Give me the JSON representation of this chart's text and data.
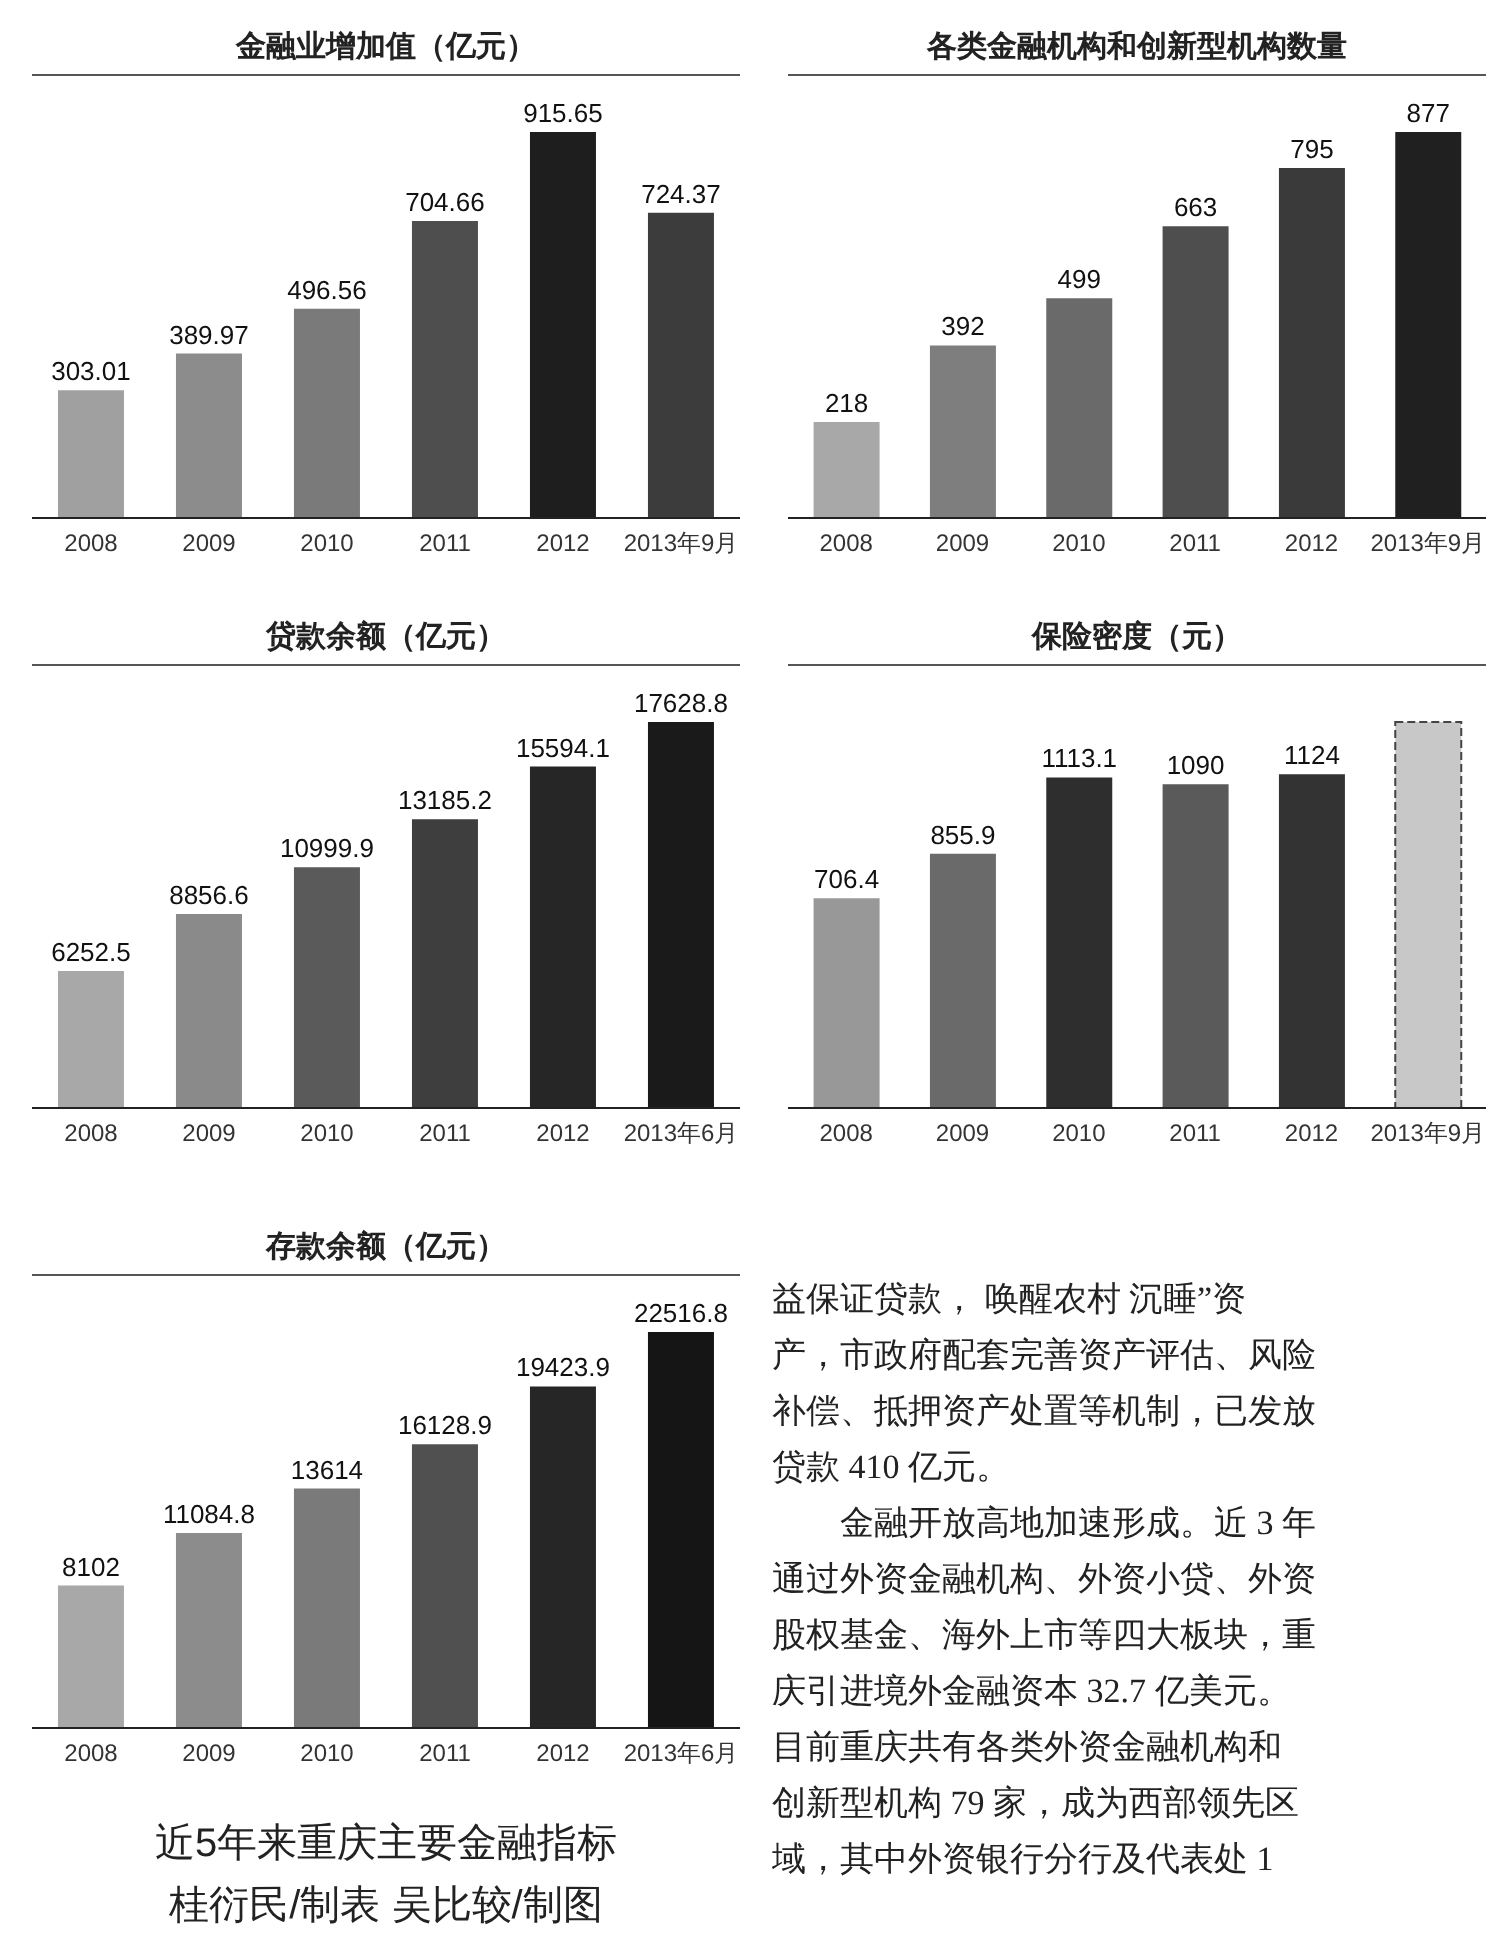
{
  "chart_data": [
    {
      "type": "bar",
      "title": "金融业增加值（亿元）",
      "categories": [
        "2008",
        "2009",
        "2010",
        "2011",
        "2012",
        "2013年9月"
      ],
      "values": [
        303.01,
        389.97,
        496.56,
        704.66,
        915.65,
        724.37
      ],
      "colors": [
        "#a0a0a0",
        "#8c8c8c",
        "#7a7a7a",
        "#4e4e4e",
        "#1e1e1e",
        "#3c3c3c"
      ],
      "data_labels": true
    },
    {
      "type": "bar",
      "title": "各类金融机构和创新型机构数量",
      "categories": [
        "2008",
        "2009",
        "2010",
        "2011",
        "2012",
        "2013年9月"
      ],
      "values": [
        218,
        392,
        499,
        663,
        795,
        877
      ],
      "colors": [
        "#a8a8a8",
        "#7e7e7e",
        "#6a6a6a",
        "#4e4e4e",
        "#3a3a3a",
        "#202020"
      ],
      "data_labels": true
    },
    {
      "type": "bar",
      "title": "贷款余额（亿元）",
      "categories": [
        "2008",
        "2009",
        "2010",
        "2011",
        "2012",
        "2013年6月"
      ],
      "values": [
        6252.5,
        8856.6,
        10999.9,
        13185.2,
        15594.1,
        17628.8
      ],
      "colors": [
        "#a8a8a8",
        "#8a8a8a",
        "#5a5a5a",
        "#3e3e3e",
        "#262626",
        "#1a1a1a"
      ],
      "data_labels": true
    },
    {
      "type": "bar",
      "title": "保险密度（元）",
      "categories": [
        "2008",
        "2009",
        "2010",
        "2011",
        "2012",
        "2013年9月"
      ],
      "values": [
        706.4,
        855.9,
        1113.1,
        1090,
        1124,
        1300
      ],
      "value_labels": [
        "706.4",
        "855.9",
        "1113.1",
        "1090",
        "1124",
        null
      ],
      "colors": [
        "#989898",
        "#6a6a6a",
        "#2e2e2e",
        "#5a5a5a",
        "#333333",
        "#c8c8c8"
      ]
    },
    {
      "type": "bar",
      "title": "存款余额（亿元）",
      "categories": [
        "2008",
        "2009",
        "2010",
        "2011",
        "2012",
        "2013年6月"
      ],
      "values": [
        8102,
        11084.8,
        13614,
        16128.9,
        19423.9,
        22516.8
      ],
      "colors": [
        "#a8a8a8",
        "#8c8c8c",
        "#7a7a7a",
        "#505050",
        "#262626",
        "#151515"
      ],
      "data_labels": true,
      "annotations": [
        "近5年来重庆主要金融指标",
        "桂衍民/制表  吴比较/制图"
      ]
    },
    {
      "type": "other",
      "annotations": [
        "益保证贷款， 唤醒农村 沉睡”资",
        "产，市政府配套完善资产评估、风险",
        "补偿、抵押资产处置等机制，已发放",
        "贷款 410 亿元。",
        "　　金融开放高地加速形成。近 3 年",
        "通过外资金融机构、外资小贷、外资",
        "股权基金、海外上市等四大板块，重",
        "庆引进境外金融资本 32.7 亿美元。",
        "目前重庆共有各类外资金融机构和",
        "创新型机构 79 家，成为西部领先区",
        "域，其中外资银行分行及代表处 1"
      ]
    }
  ]
}
